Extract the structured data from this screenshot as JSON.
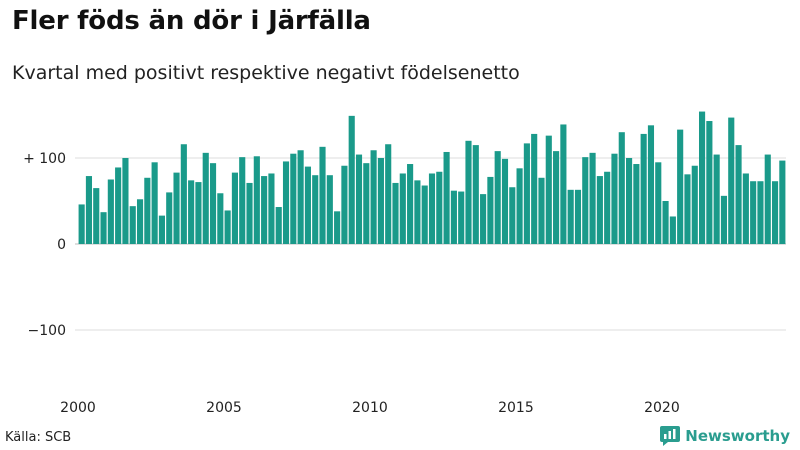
{
  "title": "Fler föds än dör i Järfälla",
  "subtitle": "Kvartal med positivt respektive negativt födelsenetto",
  "source": "Källa: SCB",
  "brand": {
    "name": "Newsworthy",
    "icon": "newsworthy-logo-icon",
    "color": "#2a9d8f"
  },
  "chart_data": {
    "type": "bar",
    "xlabel": "",
    "ylabel": "",
    "ylim": [
      -165,
      155
    ],
    "grid": true,
    "bar_color": "#1a9a8a",
    "y_ticks": [
      {
        "value": 100,
        "label": "+ 100"
      },
      {
        "value": 0,
        "label": "0"
      },
      {
        "value": -100,
        "label": "−100"
      }
    ],
    "x_ticks": [
      {
        "value": 2000,
        "label": "2000"
      },
      {
        "value": 2005,
        "label": "2005"
      },
      {
        "value": 2010,
        "label": "2010"
      },
      {
        "value": 2015,
        "label": "2015"
      },
      {
        "value": 2020,
        "label": "2020"
      }
    ],
    "start_year": 2000,
    "quarters_per_year": 4,
    "values": [
      46,
      79,
      65,
      37,
      75,
      89,
      100,
      44,
      52,
      77,
      95,
      33,
      60,
      83,
      116,
      74,
      72,
      106,
      94,
      59,
      39,
      83,
      101,
      71,
      102,
      79,
      82,
      43,
      96,
      105,
      109,
      90,
      80,
      113,
      80,
      38,
      91,
      149,
      104,
      94,
      109,
      100,
      116,
      71,
      82,
      93,
      74,
      68,
      82,
      84,
      107,
      62,
      61,
      120,
      115,
      58,
      78,
      108,
      99,
      66,
      88,
      117,
      128,
      77,
      126,
      108,
      139,
      63,
      63,
      101,
      106,
      79,
      84,
      105,
      130,
      100,
      93,
      128,
      138,
      95,
      50,
      32,
      133,
      81,
      91,
      154,
      143,
      104,
      56,
      147,
      115,
      82,
      73,
      73,
      104,
      73,
      97
    ]
  }
}
